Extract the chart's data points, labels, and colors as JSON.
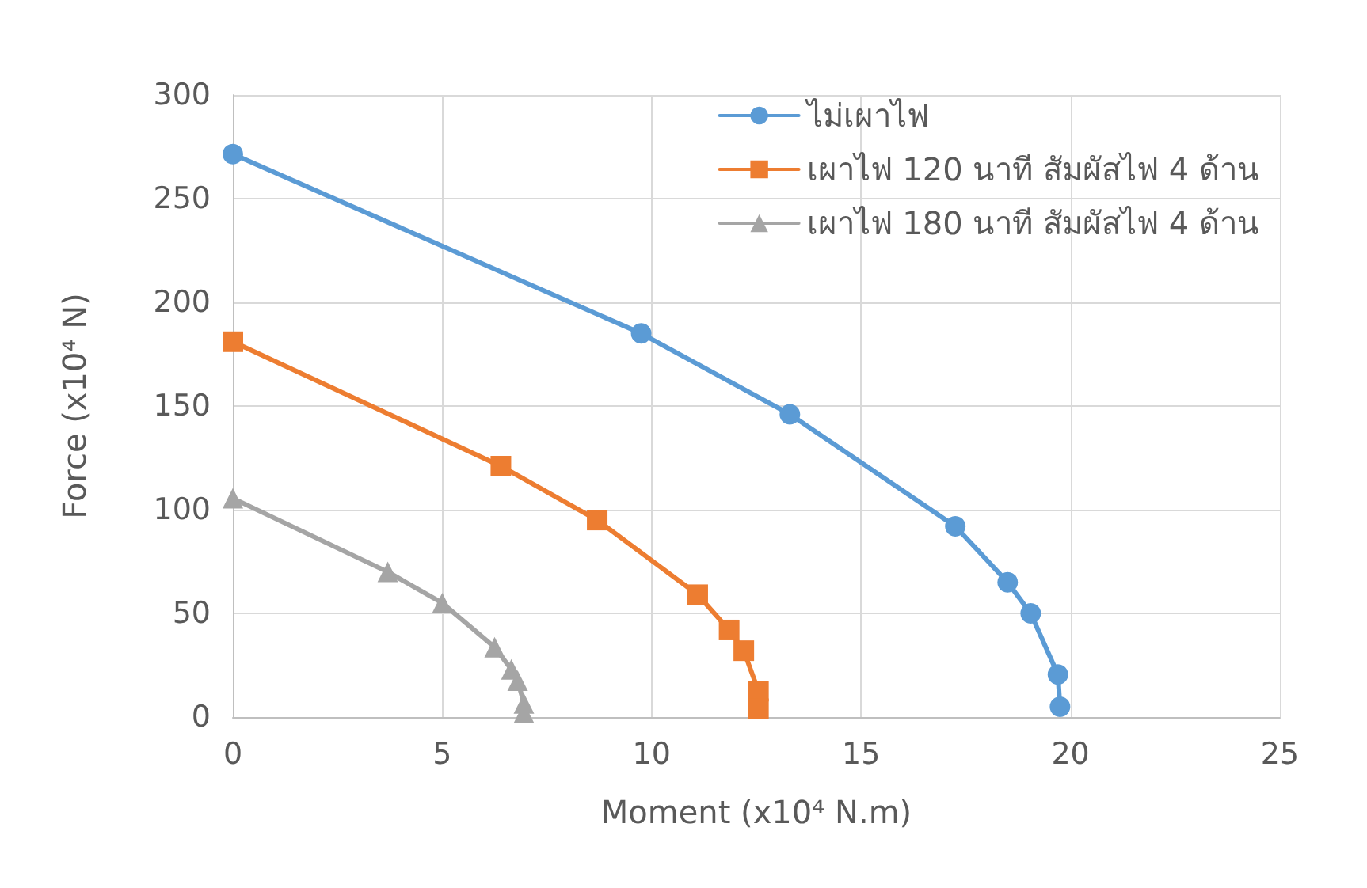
{
  "chart_data": {
    "type": "line",
    "xlabel": "Moment (x10⁴ N.m)",
    "ylabel": "Force (x10⁴ N)",
    "xlim": [
      0,
      25
    ],
    "xticks": [
      0,
      5,
      10,
      15,
      20,
      25
    ],
    "ylim": [
      0,
      300
    ],
    "yticks": [
      0,
      50,
      100,
      150,
      200,
      250,
      300
    ],
    "grid": true,
    "legend": "top right",
    "line_style": "solid",
    "series": [
      {
        "name": "ไม่เผาไฟ",
        "color": "#5b9bd5",
        "marker": "circle",
        "x": [
          0,
          9.75,
          13.3,
          17.25,
          18.5,
          19.05,
          19.7,
          19.75
        ],
        "values": [
          271.5,
          185,
          146,
          92,
          65,
          50,
          20.5,
          5
        ]
      },
      {
        "name": "เผาไฟ 120 นาที สัมผัสไฟ 4 ด้าน",
        "color": "#ed7d31",
        "marker": "square",
        "x": [
          0,
          6.4,
          8.7,
          11.1,
          11.85,
          12.2,
          12.55,
          12.55
        ],
        "values": [
          181,
          121,
          95,
          59,
          42,
          32,
          12.5,
          4
        ]
      },
      {
        "name": "เผาไฟ 180 นาที สัมผัสไฟ 4 ด้าน",
        "color": "#a5a5a5",
        "marker": "triangle",
        "x": [
          0,
          3.7,
          5,
          6.25,
          6.65,
          6.8,
          6.95,
          6.95
        ],
        "values": [
          105.5,
          70,
          55,
          33.7,
          23,
          17.6,
          6.6,
          2
        ]
      }
    ]
  }
}
